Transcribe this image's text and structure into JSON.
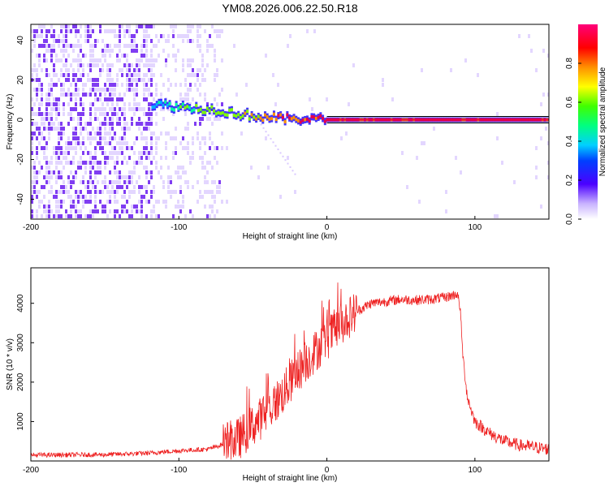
{
  "figure_title": "YM08.2026.006.22.50.R18",
  "colors": {
    "snr_line": "#ee2222",
    "spectrogram_low": "#d9c8ff",
    "spectrogram_mid": "#6a1bf0",
    "ridge_core": "#e8004a",
    "ridge_line": "#000000"
  },
  "chart_data": [
    {
      "type": "heatmap",
      "title": "",
      "xlabel": "Height of straight line (km)",
      "ylabel": "Frequency (Hz)",
      "xlim": [
        -200,
        150
      ],
      "ylim": [
        -50,
        48
      ],
      "x_ticks": [
        -200,
        -100,
        0,
        100
      ],
      "x_tick_labels": [
        "-200",
        "-100",
        "0",
        "100"
      ],
      "y_ticks": [
        -40,
        -20,
        0,
        20,
        40
      ],
      "y_tick_labels": [
        "-40",
        "-20",
        "0",
        "20",
        "40"
      ],
      "colorbar": {
        "label": "Normalized spectral amplitude",
        "range": [
          0,
          1
        ],
        "ticks": [
          0.0,
          0.2,
          0.4,
          0.6,
          0.8
        ],
        "tick_labels": [
          "0.0",
          "0.2",
          "0.4",
          "0.6",
          "0.8"
        ]
      },
      "features": {
        "noise_dense_region_km": [
          -200,
          -118
        ],
        "noise_sparse_region_km": [
          -118,
          -70
        ],
        "ridge_points": [
          {
            "x": -118,
            "f": 8,
            "amp": 0.45
          },
          {
            "x": -105,
            "f": 7,
            "amp": 0.55
          },
          {
            "x": -90,
            "f": 6,
            "amp": 0.6
          },
          {
            "x": -75,
            "f": 5,
            "amp": 0.65
          },
          {
            "x": -60,
            "f": 3,
            "amp": 0.7
          },
          {
            "x": -45,
            "f": 1.5,
            "amp": 0.8
          },
          {
            "x": -30,
            "f": 0.5,
            "amp": 0.9
          },
          {
            "x": -15,
            "f": 0.5,
            "amp": 0.92
          },
          {
            "x": 0,
            "f": 0,
            "amp": 0.95
          },
          {
            "x": 150,
            "f": 0,
            "amp": 0.95
          }
        ],
        "diagonal_streak": {
          "x_start": -45,
          "f_start": -2,
          "x_end": -22,
          "f_end": -27
        },
        "flat_line_frequency_hz": 0
      }
    },
    {
      "type": "line",
      "title": "",
      "xlabel": "Height of straight line (km)",
      "ylabel": "SNR (10 * v/v)",
      "xlim": [
        -200,
        150
      ],
      "ylim": [
        0,
        4900
      ],
      "x_ticks": [
        -200,
        -100,
        0,
        100
      ],
      "x_tick_labels": [
        "-200",
        "-100",
        "0",
        "100"
      ],
      "y_ticks": [
        1000,
        2000,
        3000,
        4000
      ],
      "y_tick_labels": [
        "1000",
        "2000",
        "3000",
        "4000"
      ],
      "series": [
        {
          "name": "SNR",
          "x": [
            -200,
            -150,
            -120,
            -100,
            -80,
            -60,
            -50,
            -40,
            -30,
            -20,
            -10,
            0,
            10,
            20,
            30,
            40,
            50,
            60,
            70,
            80,
            85,
            88,
            90,
            92,
            95,
            100,
            110,
            120,
            130,
            150
          ],
          "y": [
            150,
            160,
            200,
            260,
            300,
            550,
            900,
            1250,
            1700,
            2250,
            2700,
            3100,
            3500,
            3800,
            4000,
            4050,
            4100,
            4080,
            4100,
            4150,
            4200,
            4250,
            3900,
            2600,
            1600,
            1000,
            700,
            500,
            400,
            300
          ]
        }
      ]
    }
  ]
}
